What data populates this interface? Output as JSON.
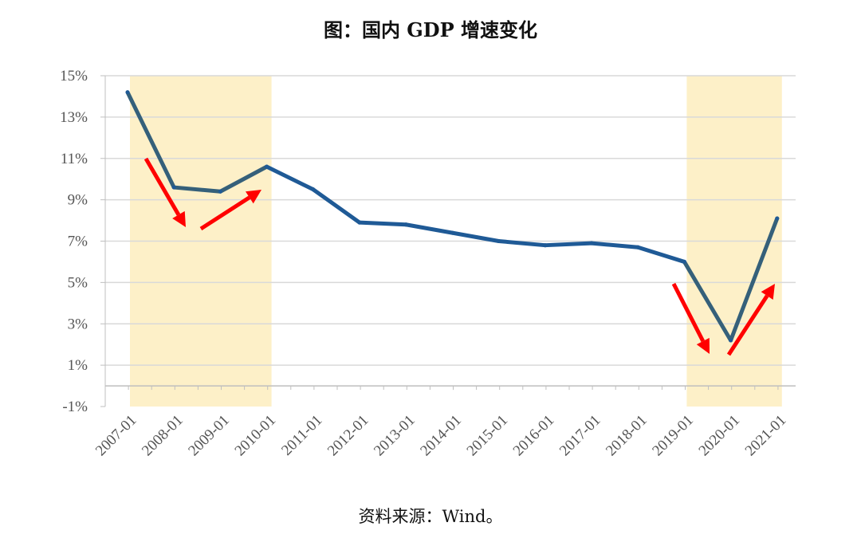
{
  "title": "图：国内 GDP 增速变化",
  "source": "资料来源：Wind。",
  "colors": {
    "line": "#1f5a96",
    "highlight": "#fdf0c8",
    "arrow": "#ff0000",
    "grid": "#d9d9d9"
  },
  "chart_data": {
    "type": "line",
    "title": "图：国内 GDP 增速变化",
    "xlabel": "",
    "ylabel": "",
    "ylim": [
      -1,
      15
    ],
    "yticks": [
      "15%",
      "13%",
      "11%",
      "9%",
      "7%",
      "5%",
      "3%",
      "1%",
      "-1%"
    ],
    "categories": [
      "2007-01",
      "2008-01",
      "2009-01",
      "2010-01",
      "2011-01",
      "2012-01",
      "2013-01",
      "2014-01",
      "2015-01",
      "2016-01",
      "2017-01",
      "2018-01",
      "2019-01",
      "2020-01",
      "2021-01"
    ],
    "series": [
      {
        "values": [
          14.2,
          9.6,
          9.4,
          10.6,
          9.5,
          7.9,
          7.8,
          7.4,
          7.0,
          6.8,
          6.9,
          6.7,
          6.0,
          2.2,
          8.1
        ]
      }
    ],
    "grid": true,
    "legend": "none",
    "highlight_periods": [
      {
        "from": "2007-01",
        "to": "2010-01"
      },
      {
        "from": "2019-01",
        "to": "2021-01"
      }
    ],
    "annotations": [
      {
        "type": "arrow",
        "direction": "down",
        "period": "2007-01 to 2010-01"
      },
      {
        "type": "arrow",
        "direction": "up",
        "period": "2007-01 to 2010-01"
      },
      {
        "type": "arrow",
        "direction": "down",
        "period": "2019-01 to 2021-01"
      },
      {
        "type": "arrow",
        "direction": "up",
        "period": "2019-01 to 2021-01"
      }
    ]
  }
}
